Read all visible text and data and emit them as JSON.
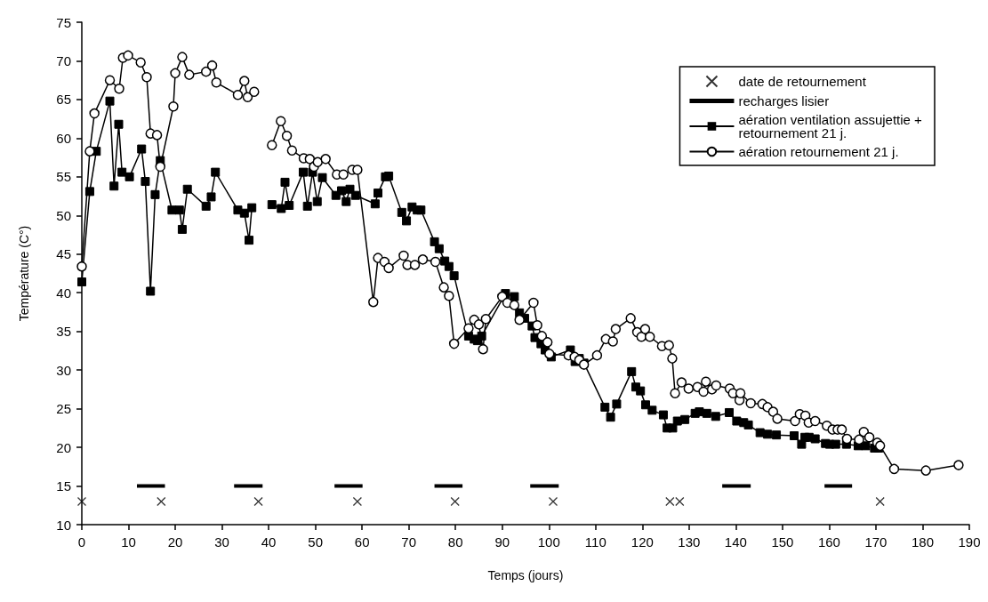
{
  "chart_data": {
    "type": "line",
    "xlabel": "Temps (jours)",
    "ylabel": "Température (C°)",
    "xlim": [
      0,
      190
    ],
    "xticks": [
      0,
      10,
      20,
      30,
      40,
      50,
      60,
      70,
      80,
      90,
      100,
      110,
      120,
      130,
      140,
      150,
      160,
      170,
      180,
      190
    ],
    "ylim": [
      10,
      75
    ],
    "yticks": [
      10,
      15,
      20,
      25,
      30,
      35,
      40,
      45,
      50,
      55,
      60,
      65,
      70,
      75
    ],
    "grid": false,
    "legend": "top right",
    "series": [
      {
        "name": "date de retournement",
        "type": "scatter",
        "marker": "cross",
        "color": "#000000",
        "x": [
          0,
          17,
          37.8,
          59,
          79.9,
          100.9,
          125.9,
          128,
          170.9
        ],
        "values": [
          13,
          13,
          13,
          13,
          13,
          13,
          13,
          13,
          13
        ]
      },
      {
        "name": "recharges lisier",
        "marker": "none",
        "color": "#000000",
        "x": [
          11.8,
          17.8,
          25,
          32.6,
          38.7,
          45,
          54.1,
          60.1,
          68,
          75.5,
          81.5,
          88,
          96,
          102.1,
          120,
          137.1,
          143.2,
          150,
          159,
          164.9
        ],
        "values": [
          15,
          15,
          null,
          15,
          15,
          null,
          15,
          15,
          null,
          15,
          15,
          null,
          15,
          15,
          null,
          15,
          15,
          null,
          15,
          15
        ]
      },
      {
        "name": "aération ventilation assujettie + retournement 21 j.",
        "marker": "square",
        "line_style": "solid",
        "color": "#000000",
        "x": [
          0,
          1.7,
          3.1,
          6.0,
          6.9,
          7.9,
          8.6,
          10.2,
          12.8,
          13.6,
          14.7,
          15.7,
          16.8,
          19.3,
          20.9,
          21.5,
          22.6,
          26.6,
          27.7,
          28.6,
          33.4,
          34.8,
          35.8,
          36.4,
          38.5,
          40.7,
          42.7,
          43.5,
          44.4,
          47.4,
          48.3,
          49.4,
          50.4,
          51.5,
          54.4,
          55.6,
          56.6,
          57.4,
          58.6,
          62.8,
          63.4,
          65.0,
          65.7,
          68.5,
          69.5,
          70.7,
          71.8,
          72.6,
          75.5,
          76.5,
          77.7,
          78.6,
          79.7,
          82.8,
          84.0,
          84.7,
          85.6,
          90.7,
          92.6,
          93.7,
          94.8,
          96.4,
          97.0,
          98.3,
          99.2,
          100.5,
          104.6,
          105.6,
          106.5,
          107.5,
          112.0,
          113.2,
          114.5,
          117.7,
          118.6,
          119.6,
          120.7,
          122.1,
          124.5,
          125.3,
          126.5,
          127.5,
          129.1,
          131.3,
          132.2,
          133.8,
          135.7,
          138.6,
          140.2,
          141.7,
          142.7,
          145.2,
          146.8,
          148.7,
          152.5,
          154.1,
          154.8,
          155.7,
          157.0,
          159.2,
          160.1,
          161.4,
          163.7,
          166.2,
          167.8,
          169.7,
          170.6
        ],
        "values": [
          41.4,
          53.1,
          58.3,
          64.8,
          53.8,
          61.8,
          55.6,
          55.0,
          58.6,
          54.4,
          40.2,
          52.7,
          57.1,
          50.7,
          50.7,
          48.2,
          53.4,
          51.2,
          52.4,
          55.6,
          50.7,
          50.3,
          46.8,
          51.0,
          null,
          51.4,
          50.9,
          54.3,
          51.3,
          55.6,
          51.2,
          55.6,
          51.8,
          54.9,
          52.6,
          53.2,
          51.8,
          53.4,
          52.6,
          51.5,
          52.9,
          55.0,
          55.1,
          50.4,
          49.3,
          51.1,
          50.7,
          50.7,
          46.6,
          45.7,
          44.1,
          43.4,
          42.2,
          34.4,
          34.0,
          33.8,
          34.4,
          39.9,
          39.5,
          37.4,
          36.7,
          35.7,
          34.2,
          33.4,
          32.6,
          31.7,
          32.6,
          31.1,
          31.5,
          30.9,
          25.2,
          23.9,
          25.6,
          29.8,
          27.8,
          27.3,
          25.5,
          24.8,
          24.2,
          22.5,
          22.5,
          23.4,
          23.6,
          24.4,
          24.6,
          24.4,
          24.0,
          24.5,
          23.4,
          23.2,
          22.9,
          21.9,
          21.7,
          21.6,
          21.5,
          20.4,
          21.3,
          21.3,
          21.1,
          20.5,
          20.4,
          20.4,
          20.4,
          20.2,
          20.2,
          19.9,
          19.9
        ]
      },
      {
        "name": "aération retournement 21 j.",
        "marker": "circle",
        "line_style": "solid",
        "color": "#000000",
        "x": [
          0,
          1.7,
          2.7,
          6.0,
          8.0,
          8.8,
          9.9,
          12.6,
          13.9,
          14.7,
          16.1,
          16.8,
          19.6,
          20.0,
          21.5,
          23.0,
          26.6,
          27.9,
          28.8,
          33.4,
          34.8,
          35.5,
          36.9,
          38.5,
          40.7,
          42.6,
          43.9,
          45.0,
          47.5,
          48.8,
          49.7,
          50.5,
          52.2,
          54.6,
          56.0,
          57.9,
          59.0,
          62.4,
          63.4,
          64.8,
          65.7,
          68.9,
          69.7,
          71.3,
          73.0,
          75.7,
          77.5,
          78.6,
          79.7,
          82.8,
          84.0,
          85.0,
          85.9,
          86.5,
          90.0,
          91.1,
          92.6,
          93.7,
          96.7,
          97.5,
          98.5,
          99.7,
          100.1,
          104.2,
          105.5,
          106.5,
          107.5,
          110.3,
          112.2,
          113.7,
          114.3,
          117.5,
          118.9,
          119.8,
          120.6,
          121.6,
          124.2,
          125.7,
          126.4,
          127.0,
          128.4,
          129.9,
          131.8,
          133.1,
          133.6,
          134.9,
          135.8,
          138.7,
          139.4,
          140.8,
          141.0,
          143.2,
          145.7,
          146.8,
          148.0,
          148.9,
          152.7,
          153.7,
          154.9,
          155.6,
          157.0,
          159.5,
          160.7,
          161.8,
          162.7,
          163.8,
          166.4,
          167.4,
          168.6,
          170.3,
          170.9,
          173.9,
          180.7,
          187.7
        ],
        "values": [
          43.4,
          58.3,
          63.2,
          67.5,
          66.4,
          70.4,
          70.7,
          69.8,
          67.9,
          60.6,
          60.4,
          56.3,
          64.1,
          68.4,
          70.5,
          68.2,
          68.6,
          69.4,
          67.2,
          65.6,
          67.4,
          65.3,
          66.0,
          null,
          59.1,
          62.2,
          60.3,
          58.4,
          57.4,
          57.3,
          56.3,
          56.9,
          57.3,
          55.3,
          55.3,
          55.9,
          55.9,
          38.8,
          44.5,
          44.0,
          43.2,
          44.8,
          43.6,
          43.6,
          44.3,
          44.0,
          40.7,
          39.6,
          33.4,
          35.4,
          36.5,
          35.9,
          32.7,
          36.6,
          39.5,
          38.7,
          38.4,
          36.5,
          38.7,
          35.8,
          34.4,
          33.6,
          32.1,
          31.9,
          31.7,
          31.3,
          30.7,
          31.9,
          34.0,
          33.7,
          35.3,
          36.7,
          34.9,
          34.3,
          35.3,
          34.3,
          33.1,
          33.2,
          31.5,
          27.0,
          28.4,
          27.6,
          27.8,
          27.2,
          28.5,
          27.5,
          28.0,
          27.6,
          27.0,
          26.1,
          27.0,
          25.7,
          25.6,
          25.2,
          24.6,
          23.7,
          23.4,
          24.3,
          24.1,
          23.2,
          23.4,
          22.8,
          22.3,
          22.3,
          22.3,
          21.1,
          21.0,
          22.0,
          21.3,
          20.6,
          20.2,
          17.2,
          17.0,
          17.7
        ]
      }
    ]
  }
}
